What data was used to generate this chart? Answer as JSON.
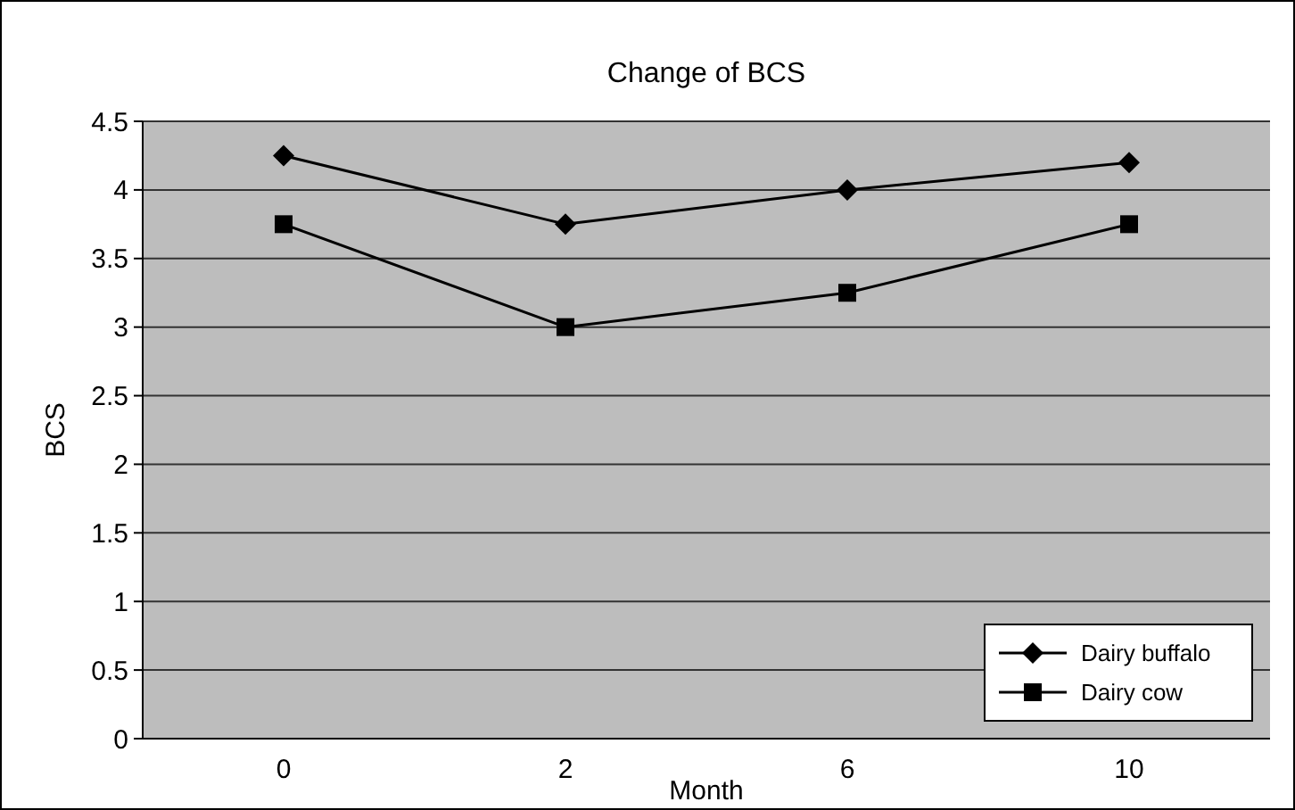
{
  "chart_data": {
    "type": "line",
    "title": "Change of BCS",
    "xlabel": "Month",
    "ylabel": "BCS",
    "categories": [
      "0",
      "2",
      "6",
      "10"
    ],
    "series": [
      {
        "name": "Dairy buffalo",
        "color": "#000000",
        "marker": "diamond",
        "values": [
          4.25,
          3.75,
          4.0,
          4.2
        ]
      },
      {
        "name": "Dairy cow",
        "color": "#000000",
        "marker": "square",
        "values": [
          3.75,
          3.0,
          3.25,
          3.75
        ]
      }
    ],
    "ylim": [
      0,
      4.5
    ],
    "yticks": [
      0,
      0.5,
      1,
      1.5,
      2,
      2.5,
      3,
      3.5,
      4,
      4.5
    ],
    "grid": "y",
    "legend": "bottom right"
  }
}
